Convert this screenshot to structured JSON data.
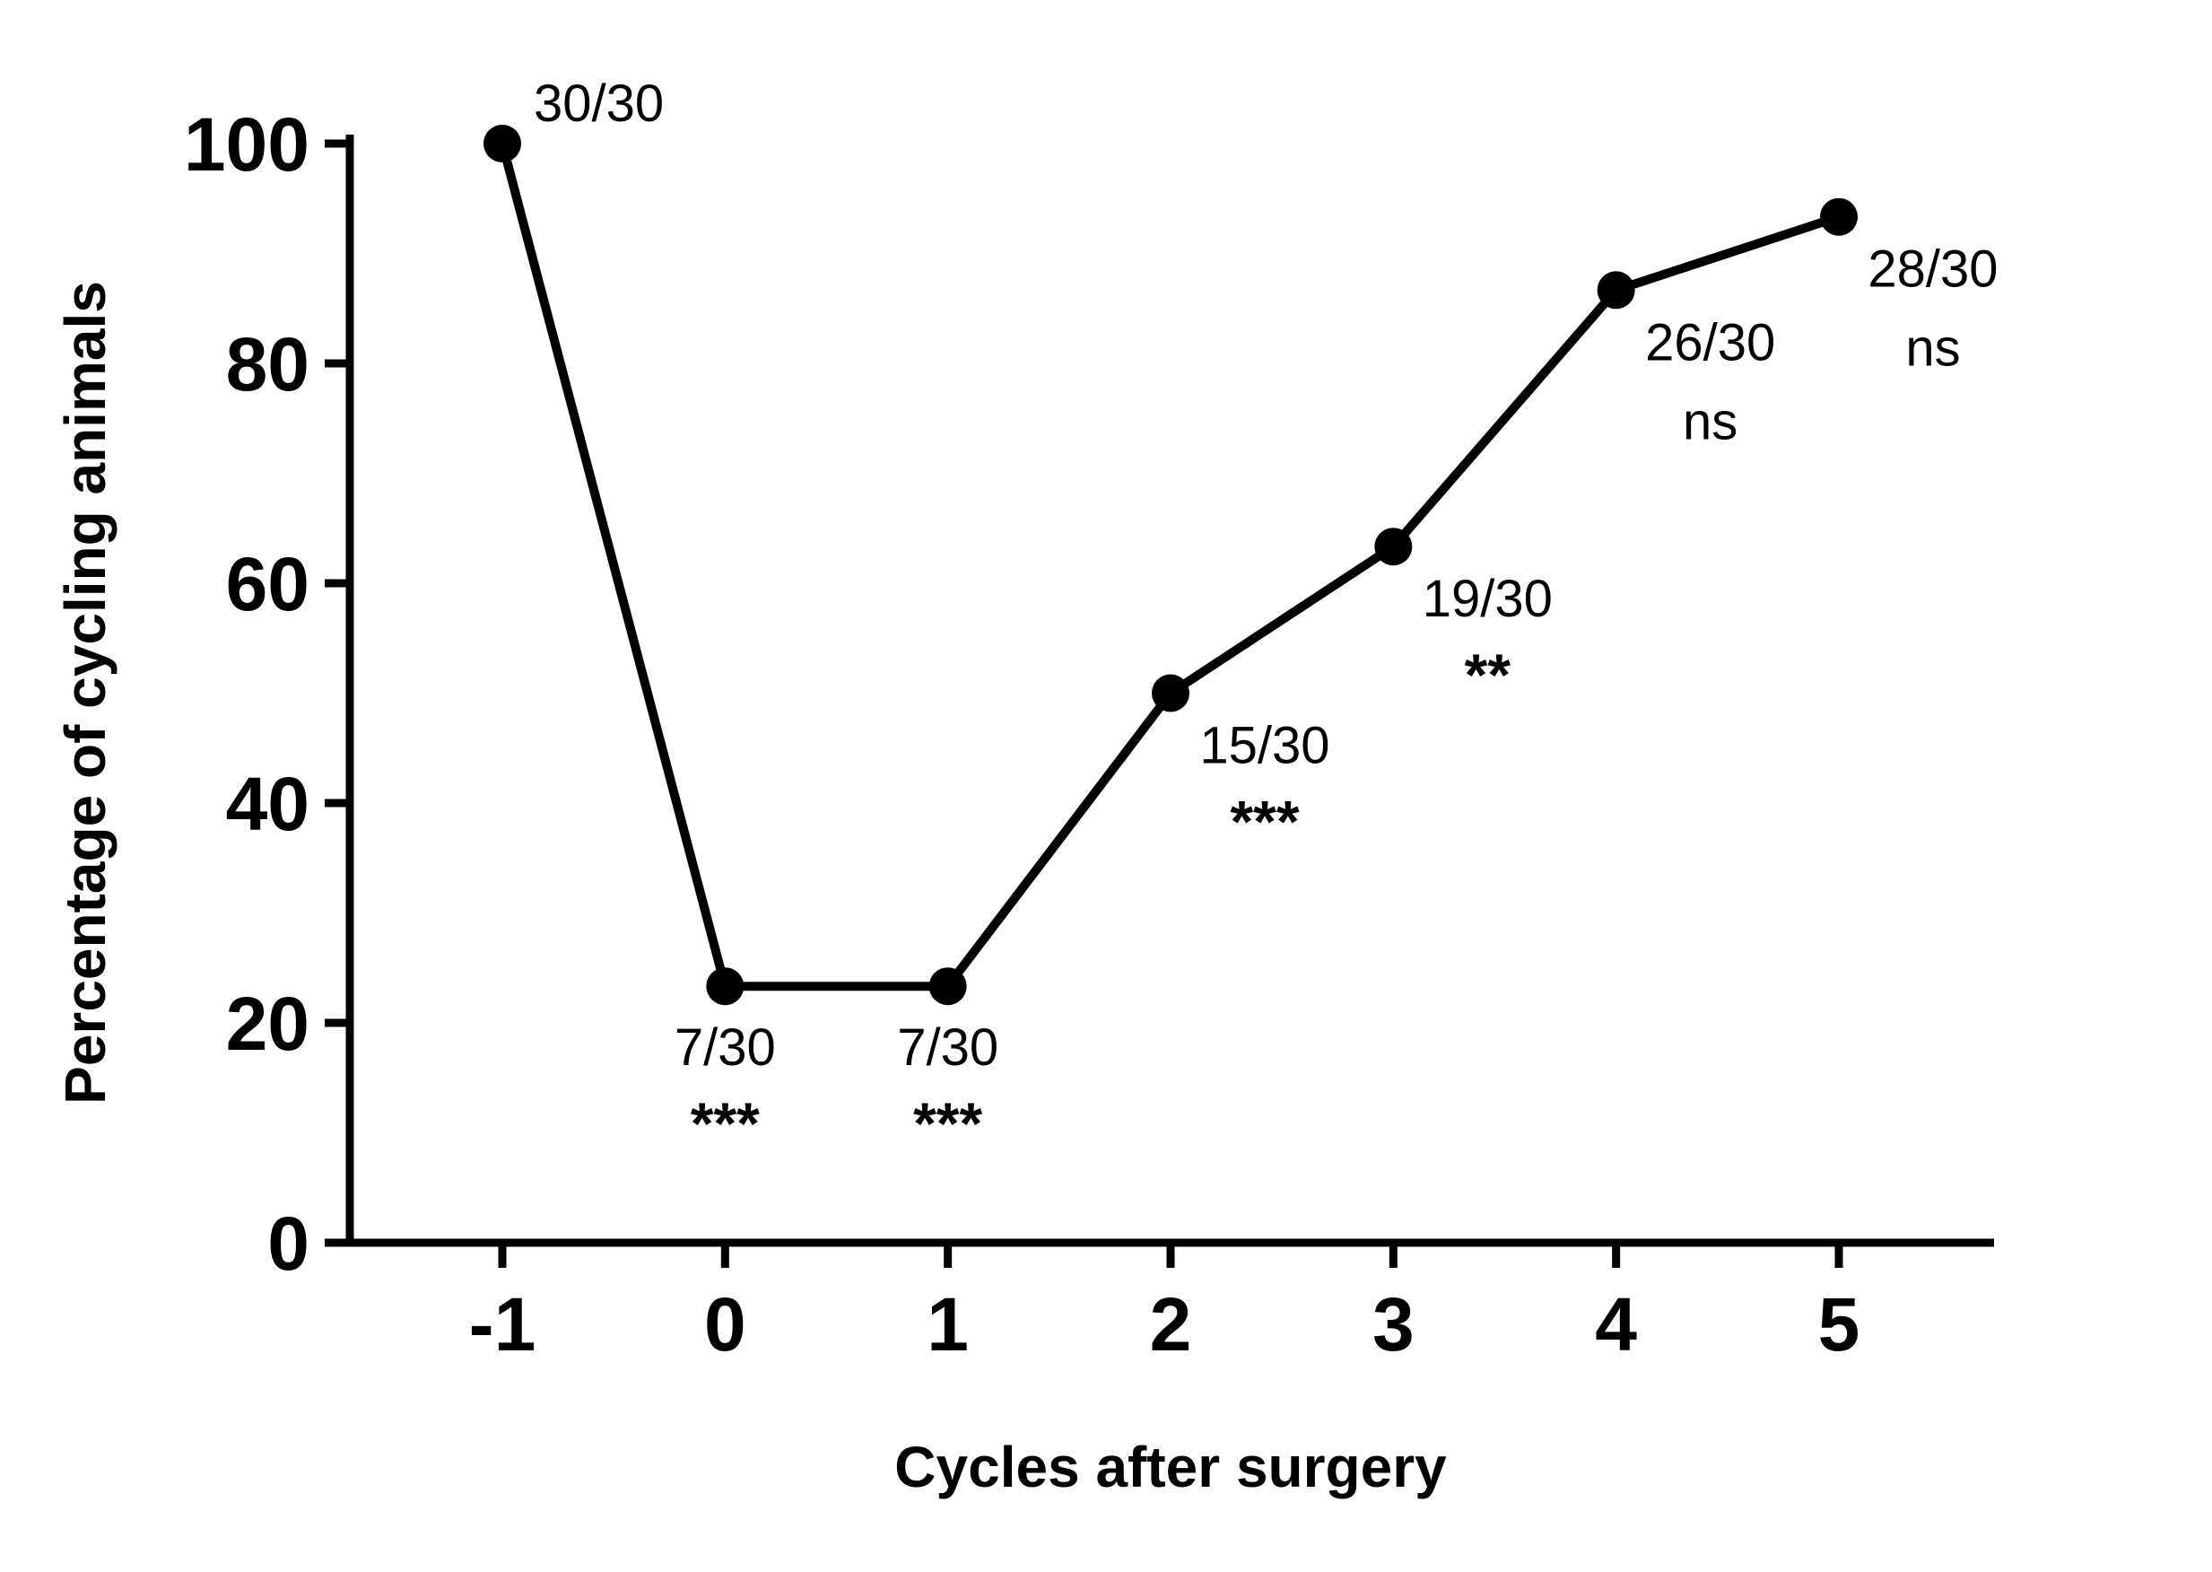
{
  "chart_data": {
    "type": "line",
    "title": "",
    "xlabel": "Cycles after surgery",
    "ylabel": "Percentage of cycling animals",
    "x": [
      -1,
      0,
      1,
      2,
      3,
      4,
      5
    ],
    "values": [
      100,
      23.33,
      23.33,
      50,
      63.33,
      86.67,
      93.33
    ],
    "series_name": "Percentage of cycling animals",
    "xticks": [
      "-1",
      "0",
      "1",
      "2",
      "3",
      "4",
      "5"
    ],
    "yticks": [
      "0",
      "20",
      "40",
      "60",
      "80",
      "100"
    ],
    "ylim": [
      0,
      100
    ],
    "grid": false,
    "legend": false,
    "line_color": "#000000",
    "marker": "filled-circle",
    "annotations": [
      {
        "x": -1,
        "lines": [
          "30/30"
        ],
        "placement": "above-right"
      },
      {
        "x": 0,
        "lines": [
          "7/30",
          "***"
        ],
        "placement": "below"
      },
      {
        "x": 1,
        "lines": [
          "7/30",
          "***"
        ],
        "placement": "below"
      },
      {
        "x": 2,
        "lines": [
          "15/30",
          "***"
        ],
        "placement": "below-right"
      },
      {
        "x": 3,
        "lines": [
          "19/30",
          "**"
        ],
        "placement": "below-right"
      },
      {
        "x": 4,
        "lines": [
          "26/30",
          "ns"
        ],
        "placement": "below-right"
      },
      {
        "x": 5,
        "lines": [
          "28/30",
          "ns"
        ],
        "placement": "below-right"
      }
    ]
  }
}
